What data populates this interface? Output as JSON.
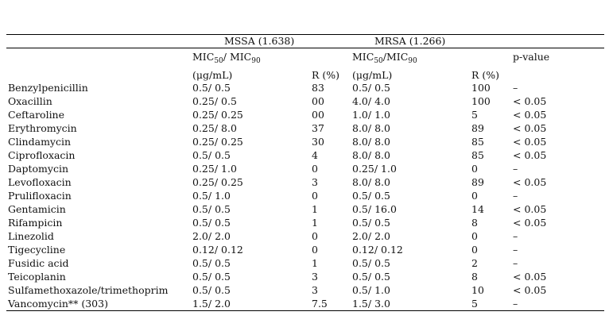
{
  "header": {
    "mssa_group": "MSSA (1.638)",
    "mrsa_group": "MRSA (1.266)",
    "mic_label_prefix": "MIC",
    "mic50_sub": "50",
    "mic_sep_mssa": "/ MIC",
    "mic_sep_mrsa": "/MIC",
    "mic90_sub": "90",
    "pvalue_label": "p-value",
    "unit_label": "(μg/mL)",
    "r_label": "R (%)"
  },
  "rows": [
    {
      "drug": "Benzylpenicillin",
      "mssa_mic": "0.5/ 0.5",
      "mssa_r": "83",
      "mrsa_mic": "0.5/ 0.5",
      "mrsa_r": "100",
      "p": "–"
    },
    {
      "drug": "Oxacillin",
      "mssa_mic": "0.25/ 0.5",
      "mssa_r": "00",
      "mrsa_mic": "4.0/ 4.0",
      "mrsa_r": "100",
      "p": "< 0.05"
    },
    {
      "drug": "Ceftaroline",
      "mssa_mic": "0.25/ 0.25",
      "mssa_r": "00",
      "mrsa_mic": "1.0/ 1.0",
      "mrsa_r": "5",
      "p": "< 0.05"
    },
    {
      "drug": "Erythromycin",
      "mssa_mic": "0.25/ 8.0",
      "mssa_r": "37",
      "mrsa_mic": "8.0/ 8.0",
      "mrsa_r": "89",
      "p": "< 0.05"
    },
    {
      "drug": "Clindamycin",
      "mssa_mic": "0.25/ 0.25",
      "mssa_r": "30",
      "mrsa_mic": "8.0/ 8.0",
      "mrsa_r": "85",
      "p": "< 0.05"
    },
    {
      "drug": "Ciprofloxacin",
      "mssa_mic": "0.5/ 0.5",
      "mssa_r": "4",
      "mrsa_mic": "8.0/ 8.0",
      "mrsa_r": "85",
      "p": "< 0.05"
    },
    {
      "drug": "Daptomycin",
      "mssa_mic": "0.25/ 1.0",
      "mssa_r": "0",
      "mrsa_mic": "0.25/ 1.0",
      "mrsa_r": "0",
      "p": "–"
    },
    {
      "drug": "Levofloxacin",
      "mssa_mic": "0.25/ 0.25",
      "mssa_r": "3",
      "mrsa_mic": "8.0/ 8.0",
      "mrsa_r": "89",
      "p": "< 0.05"
    },
    {
      "drug": "Prulifloxacin",
      "mssa_mic": "0.5/ 1.0",
      "mssa_r": "0",
      "mrsa_mic": "0.5/ 0.5",
      "mrsa_r": "0",
      "p": "–"
    },
    {
      "drug": "Gentamicin",
      "mssa_mic": "0.5/ 0.5",
      "mssa_r": "1",
      "mrsa_mic": "0.5/ 16.0",
      "mrsa_r": "14",
      "p": "< 0.05"
    },
    {
      "drug": "Rifampicin",
      "mssa_mic": "0.5/ 0.5",
      "mssa_r": "1",
      "mrsa_mic": "0.5/ 0.5",
      "mrsa_r": "8",
      "p": "< 0.05"
    },
    {
      "drug": "Linezolid",
      "mssa_mic": "2.0/ 2.0",
      "mssa_r": "0",
      "mrsa_mic": "2.0/ 2.0",
      "mrsa_r": "0",
      "p": "–"
    },
    {
      "drug": "Tigecycline",
      "mssa_mic": "0.12/ 0.12",
      "mssa_r": "0",
      "mrsa_mic": "0.12/ 0.12",
      "mrsa_r": "0",
      "p": "–"
    },
    {
      "drug": "Fusidic acid",
      "mssa_mic": "0.5/ 0.5",
      "mssa_r": "1",
      "mrsa_mic": "0.5/ 0.5",
      "mrsa_r": "2",
      "p": "–"
    },
    {
      "drug": "Teicoplanin",
      "mssa_mic": "0.5/ 0.5",
      "mssa_r": "3",
      "mrsa_mic": "0.5/ 0.5",
      "mrsa_r": "8",
      "p": "< 0.05"
    },
    {
      "drug": "Sulfamethoxazole/trimethoprim",
      "mssa_mic": "0.5/ 0.5",
      "mssa_r": "3",
      "mrsa_mic": "0.5/ 1.0",
      "mrsa_r": "10",
      "p": "< 0.05"
    },
    {
      "drug": "Vancomycin** (303)",
      "mssa_mic": "1.5/ 2.0",
      "mssa_r": "7.5",
      "mrsa_mic": "1.5/ 3.0",
      "mrsa_r": "5",
      "p": "–"
    }
  ]
}
